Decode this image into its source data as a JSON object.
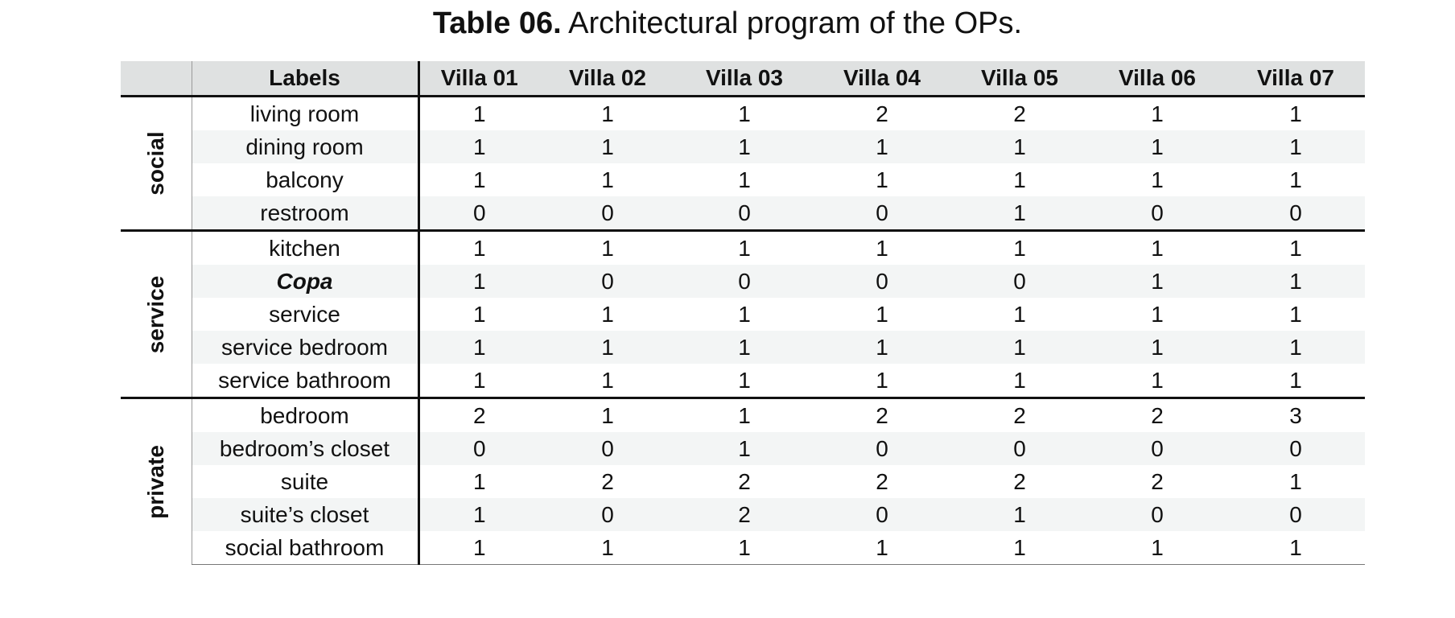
{
  "caption": {
    "label": "Table 06.",
    "text": " Architectural program of the OPs."
  },
  "table": {
    "header_label": "Labels",
    "villas": [
      "Villa 01",
      "Villa 02",
      "Villa 03",
      "Villa 04",
      "Villa 05",
      "Villa 06",
      "Villa 07"
    ],
    "groups": [
      {
        "name": "social",
        "rows": [
          {
            "label": "living room",
            "values": [
              "1",
              "1",
              "1",
              "2",
              "2",
              "1",
              "1"
            ]
          },
          {
            "label": "dining room",
            "values": [
              "1",
              "1",
              "1",
              "1",
              "1",
              "1",
              "1"
            ]
          },
          {
            "label": "balcony",
            "values": [
              "1",
              "1",
              "1",
              "1",
              "1",
              "1",
              "1"
            ]
          },
          {
            "label": "restroom",
            "values": [
              "0",
              "0",
              "0",
              "0",
              "1",
              "0",
              "0"
            ]
          }
        ]
      },
      {
        "name": "service",
        "rows": [
          {
            "label": "kitchen",
            "values": [
              "1",
              "1",
              "1",
              "1",
              "1",
              "1",
              "1"
            ]
          },
          {
            "label": "Copa",
            "italic": true,
            "values": [
              "1",
              "0",
              "0",
              "0",
              "0",
              "1",
              "1"
            ]
          },
          {
            "label": "service",
            "values": [
              "1",
              "1",
              "1",
              "1",
              "1",
              "1",
              "1"
            ]
          },
          {
            "label": "service bedroom",
            "values": [
              "1",
              "1",
              "1",
              "1",
              "1",
              "1",
              "1"
            ]
          },
          {
            "label": "service bathroom",
            "values": [
              "1",
              "1",
              "1",
              "1",
              "1",
              "1",
              "1"
            ]
          }
        ]
      },
      {
        "name": "private",
        "rows": [
          {
            "label": "bedroom",
            "values": [
              "2",
              "1",
              "1",
              "2",
              "2",
              "2",
              "3"
            ]
          },
          {
            "label": "bedroom’s closet",
            "values": [
              "0",
              "0",
              "1",
              "0",
              "0",
              "0",
              "0"
            ]
          },
          {
            "label": "suite",
            "values": [
              "1",
              "2",
              "2",
              "2",
              "2",
              "2",
              "1"
            ]
          },
          {
            "label": "suite’s closet",
            "values": [
              "1",
              "0",
              "2",
              "0",
              "1",
              "0",
              "0"
            ]
          },
          {
            "label": "social bathroom",
            "values": [
              "1",
              "1",
              "1",
              "1",
              "1",
              "1",
              "1"
            ]
          }
        ]
      }
    ]
  }
}
